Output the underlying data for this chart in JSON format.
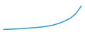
{
  "x": [
    2008,
    2009,
    2010,
    2011,
    2012,
    2013,
    2014,
    2015,
    2016,
    2017,
    2018,
    2019,
    2020,
    2021,
    2022
  ],
  "y": [
    0.06,
    0.062,
    0.064,
    0.066,
    0.07,
    0.074,
    0.078,
    0.083,
    0.09,
    0.1,
    0.115,
    0.135,
    0.16,
    0.2,
    0.27
  ],
  "line_color": "#3399cc",
  "linewidth": 1.1,
  "background_color": "#ffffff",
  "ylim_min": 0.04,
  "ylim_max": 0.32,
  "xlim_min": 2007.5,
  "xlim_max": 2022.5
}
